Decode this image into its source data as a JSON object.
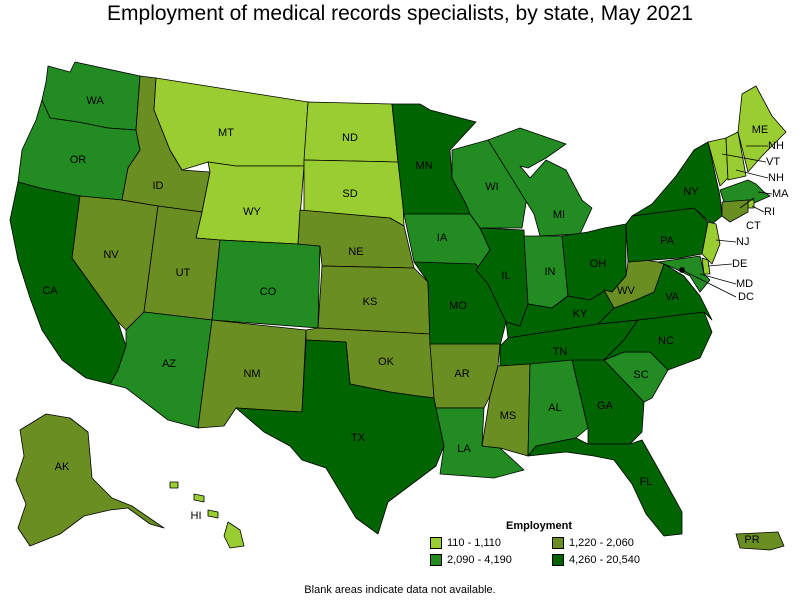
{
  "title": "Employment of medical records specialists, by state, May 2021",
  "legend": {
    "title": "Employment",
    "classes": [
      {
        "label": "110 - 1,110",
        "color": "#9acd32"
      },
      {
        "label": "1,220 - 2,060",
        "color": "#6b8e23"
      },
      {
        "label": "2,090 - 4,190",
        "color": "#228b22"
      },
      {
        "label": "4,260 - 20,540",
        "color": "#006400"
      }
    ]
  },
  "footnote": "Blank areas indicate data not available.",
  "states": {
    "WA": 2,
    "OR": 2,
    "CA": 3,
    "NV": 1,
    "ID": 1,
    "MT": 0,
    "WY": 0,
    "UT": 1,
    "AZ": 2,
    "CO": 2,
    "NM": 1,
    "ND": 0,
    "SD": 0,
    "NE": 1,
    "KS": 1,
    "OK": 1,
    "TX": 3,
    "MN": 3,
    "IA": 2,
    "MO": 3,
    "AR": 1,
    "LA": 2,
    "WI": 2,
    "IL": 3,
    "MI": 2,
    "IN": 2,
    "OH": 3,
    "KY": 3,
    "TN": 3,
    "MS": 1,
    "AL": 2,
    "GA": 3,
    "FL": 3,
    "SC": 2,
    "NC": 3,
    "VA": 3,
    "WV": 1,
    "PA": 3,
    "NY": 3,
    "VT": 0,
    "NH": 0,
    "ME": 0,
    "MA": 2,
    "RI": 0,
    "CT": 1,
    "NJ": 0,
    "DE": 0,
    "MD": 2,
    "DC": 0,
    "AK": 1,
    "HI": 0,
    "PR": 1
  }
}
